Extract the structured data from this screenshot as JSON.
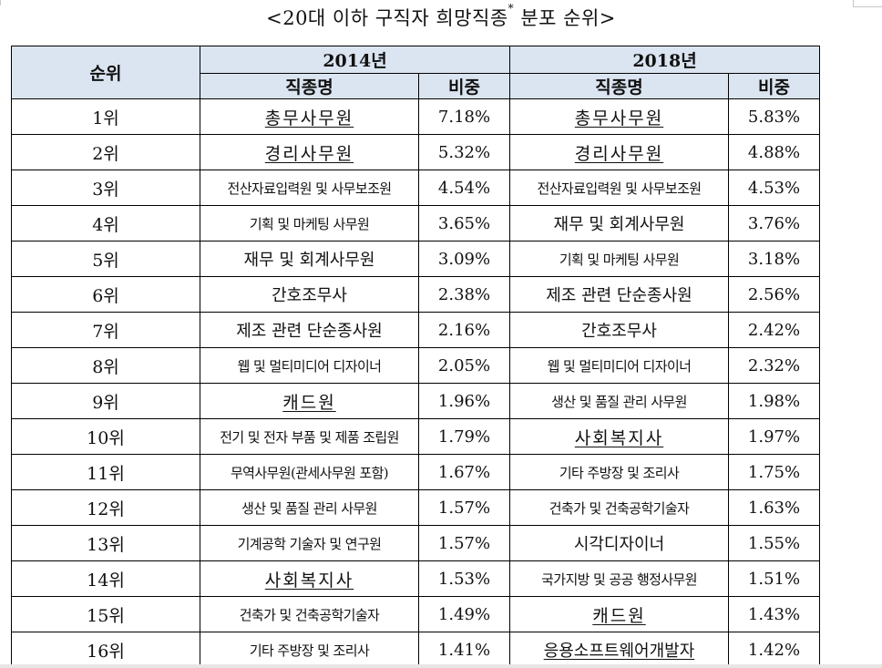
{
  "title": {
    "text": "<20대 이하 구직자 희망직종",
    "superscript": "*",
    "suffix": " 분포 순위>"
  },
  "table": {
    "header": {
      "rank": "순위",
      "year_a": "2014년",
      "year_b": "2018년",
      "occupation": "직종명",
      "share": "비중"
    },
    "rows": [
      {
        "rank": "1위",
        "a_job": "총무사무원",
        "a_ul": true,
        "a_pct": "7.18%",
        "b_job": "총무사무원",
        "b_ul": true,
        "b_pct": "5.83%"
      },
      {
        "rank": "2위",
        "a_job": "경리사무원",
        "a_ul": true,
        "a_pct": "5.32%",
        "b_job": "경리사무원",
        "b_ul": true,
        "b_pct": "4.88%"
      },
      {
        "rank": "3위",
        "a_job": "전산자료입력원 및 사무보조원",
        "a_ul": false,
        "a_pct": "4.54%",
        "b_job": "전산자료입력원 및 사무보조원",
        "b_ul": false,
        "b_pct": "4.53%"
      },
      {
        "rank": "4위",
        "a_job": "기획 및 마케팅 사무원",
        "a_ul": false,
        "a_pct": "3.65%",
        "b_job": "재무 및 회계사무원",
        "b_ul": false,
        "b_pct": "3.76%"
      },
      {
        "rank": "5위",
        "a_job": "재무 및 회계사무원",
        "a_ul": false,
        "a_pct": "3.09%",
        "b_job": "기획 및 마케팅 사무원",
        "b_ul": false,
        "b_pct": "3.18%"
      },
      {
        "rank": "6위",
        "a_job": "간호조무사",
        "a_ul": false,
        "a_pct": "2.38%",
        "b_job": "제조 관련 단순종사원",
        "b_ul": false,
        "b_pct": "2.56%"
      },
      {
        "rank": "7위",
        "a_job": "제조 관련 단순종사원",
        "a_ul": false,
        "a_pct": "2.16%",
        "b_job": "간호조무사",
        "b_ul": false,
        "b_pct": "2.42%"
      },
      {
        "rank": "8위",
        "a_job": "웹 및 멀티미디어 디자이너",
        "a_ul": false,
        "a_pct": "2.05%",
        "b_job": "웹 및 멀티미디어 디자이너",
        "b_ul": false,
        "b_pct": "2.32%"
      },
      {
        "rank": "9위",
        "a_job": "캐드원",
        "a_ul": true,
        "a_pct": "1.96%",
        "b_job": "생산 및 품질 관리 사무원",
        "b_ul": false,
        "b_pct": "1.98%"
      },
      {
        "rank": "10위",
        "a_job": "전기 및 전자 부품 및 제품 조립원",
        "a_ul": false,
        "a_pct": "1.79%",
        "b_job": "사회복지사",
        "b_ul": true,
        "b_pct": "1.97%"
      },
      {
        "rank": "11위",
        "a_job": "무역사무원(관세사무원 포함)",
        "a_ul": false,
        "a_pct": "1.67%",
        "b_job": "기타 주방장 및 조리사",
        "b_ul": false,
        "b_pct": "1.75%"
      },
      {
        "rank": "12위",
        "a_job": "생산 및 품질 관리 사무원",
        "a_ul": false,
        "a_pct": "1.57%",
        "b_job": "건축가 및 건축공학기술자",
        "b_ul": false,
        "b_pct": "1.63%"
      },
      {
        "rank": "13위",
        "a_job": "기계공학 기술자 및 연구원",
        "a_ul": false,
        "a_pct": "1.57%",
        "b_job": "시각디자이너",
        "b_ul": false,
        "b_pct": "1.55%"
      },
      {
        "rank": "14위",
        "a_job": "사회복지사",
        "a_ul": true,
        "a_pct": "1.53%",
        "b_job": "국가지방 및 공공 행정사무원",
        "b_ul": false,
        "b_pct": "1.51%"
      },
      {
        "rank": "15위",
        "a_job": "건축가 및 건축공학기술자",
        "a_ul": false,
        "a_pct": "1.49%",
        "b_job": "캐드원",
        "b_ul": true,
        "b_pct": "1.43%"
      },
      {
        "rank": "16위",
        "a_job": "기타 주방장 및 조리사",
        "a_ul": false,
        "a_pct": "1.41%",
        "b_job": "응용소프트웨어개발자",
        "b_ul": true,
        "b_pct": "1.42%"
      }
    ]
  }
}
